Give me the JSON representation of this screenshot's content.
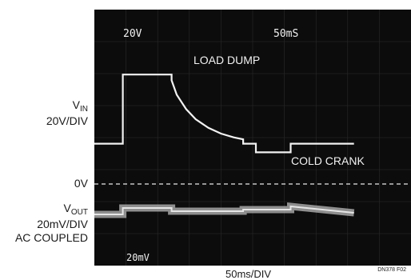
{
  "chart_data": {
    "type": "line",
    "title": "",
    "xlabel": "50ms/DIV",
    "screen_top_left": "20V",
    "screen_top_right": "50mS",
    "screen_bottom_left": "20mV",
    "x_unit": "ms",
    "xlim": [
      0,
      500
    ],
    "annotations": [
      "LOAD DUMP",
      "COLD CRANK"
    ],
    "series": [
      {
        "name": "VIN",
        "scale": "20V/DIV",
        "unit": "V",
        "x": [
          0,
          45,
          45,
          122,
          122,
          130,
          145,
          160,
          180,
          200,
          220,
          235,
          235,
          255,
          255,
          310,
          310,
          410
        ],
        "y": [
          14,
          14,
          38,
          38,
          36,
          31,
          26,
          22.5,
          19.5,
          17.5,
          16.2,
          15.5,
          14,
          14,
          11,
          11,
          14,
          14
        ]
      },
      {
        "name": "VOUT",
        "scale": "20mV/DIV",
        "coupling": "AC COUPLED",
        "unit": "mV",
        "x": [
          0,
          45,
          45,
          122,
          122,
          235,
          235,
          310,
          310,
          410
        ],
        "y": [
          0,
          0,
          8,
          8,
          4,
          4,
          6,
          6,
          10,
          2
        ]
      }
    ],
    "reference": "0V",
    "credit": "DN378 F02"
  },
  "labels": {
    "vin_main": "V",
    "vin_sub": "IN",
    "vin_scale": "20V/DIV",
    "zero": "0V",
    "vout_main": "V",
    "vout_sub": "OUT",
    "vout_scale": "20mV/DIV",
    "vout_coupling": "AC COUPLED"
  },
  "colors": {
    "screen": "#0c0c0c",
    "grid": "#2a2a2a",
    "trace": "#f2f2f2",
    "ref_line": "#e8e8e8"
  }
}
